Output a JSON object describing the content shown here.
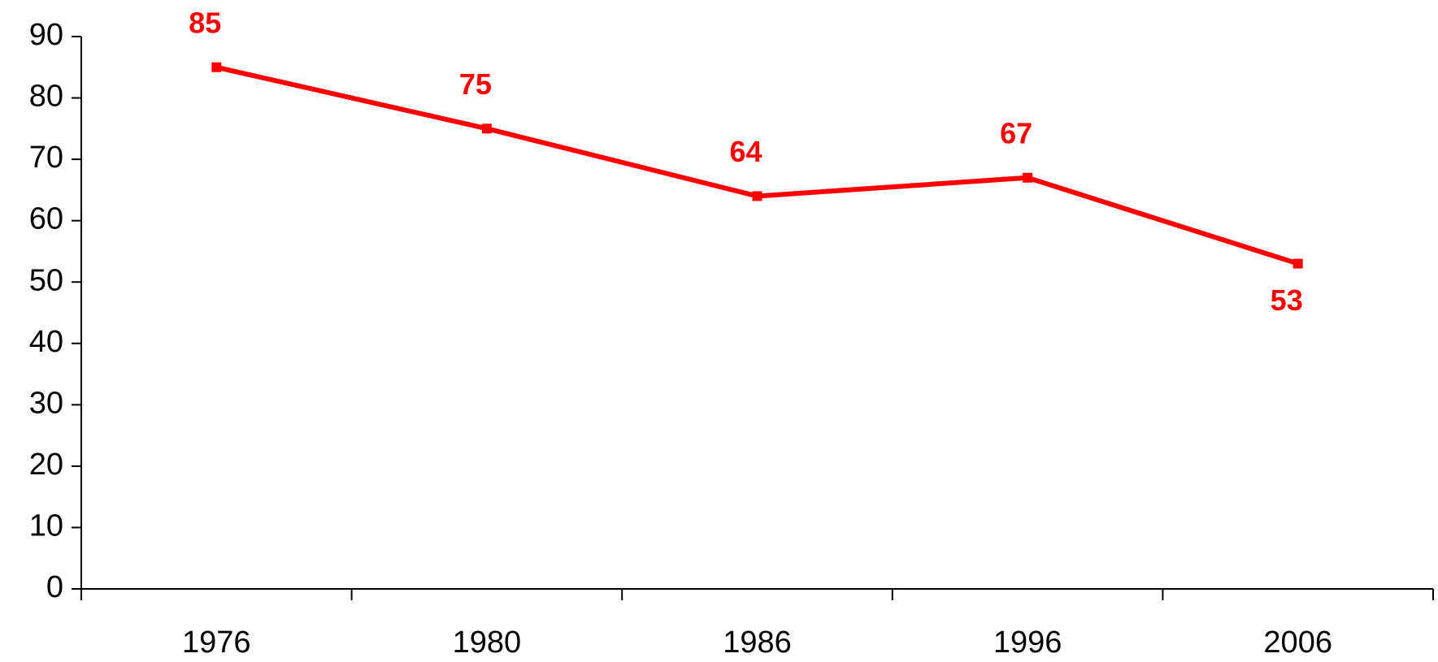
{
  "chart_data": {
    "type": "line",
    "categories": [
      "1976",
      "1980",
      "1986",
      "1996",
      "2006"
    ],
    "series": [
      {
        "color": "#ff0000",
        "values": [
          85,
          75,
          64,
          67,
          53
        ]
      }
    ],
    "ylim": [
      0,
      90
    ],
    "yticks": [
      0,
      10,
      20,
      30,
      40,
      50,
      60,
      70,
      80,
      90
    ]
  }
}
